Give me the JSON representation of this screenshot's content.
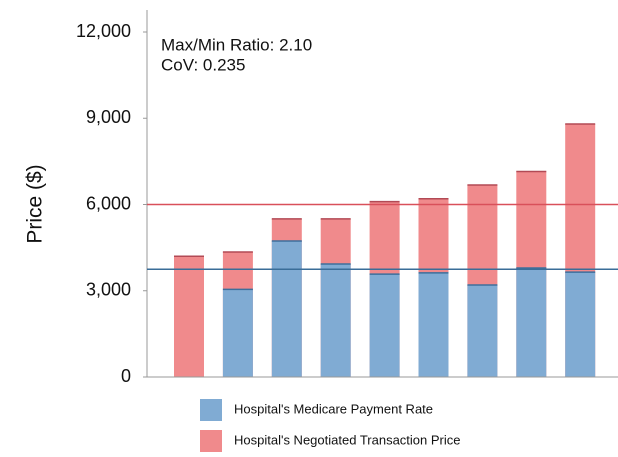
{
  "chart_data": {
    "type": "bar",
    "y_label": "Price ($)",
    "annotations": [
      "Max/Min Ratio: 2.10",
      "CoV: 0.235"
    ],
    "categories": [
      null,
      null,
      null,
      null,
      null,
      null,
      null,
      null,
      null
    ],
    "series": [
      {
        "name": "Hospital's Negotiated Transaction Price",
        "color": "#f08a8c",
        "values": [
          4200,
          4350,
          5500,
          5500,
          6100,
          6200,
          6680,
          7150,
          8800
        ]
      },
      {
        "name": "Hospital's Medicare Payment Rate",
        "color": "#80abd3",
        "values": [
          null,
          3050,
          4730,
          3930,
          3580,
          3620,
          3200,
          3790,
          3650
        ]
      }
    ],
    "reference_lines": [
      {
        "value": 6000,
        "color": "#d9505a"
      },
      {
        "value": 3750,
        "color": "#3a6d98"
      }
    ],
    "ylim": [
      0,
      12000
    ],
    "yticks": [
      0,
      {
        "value": 3000,
        "label": "3,000"
      },
      {
        "value": 6000,
        "label": "6,000"
      },
      {
        "value": 9000,
        "label": "9,000"
      },
      {
        "value": 12000,
        "label": "12,000"
      }
    ]
  }
}
